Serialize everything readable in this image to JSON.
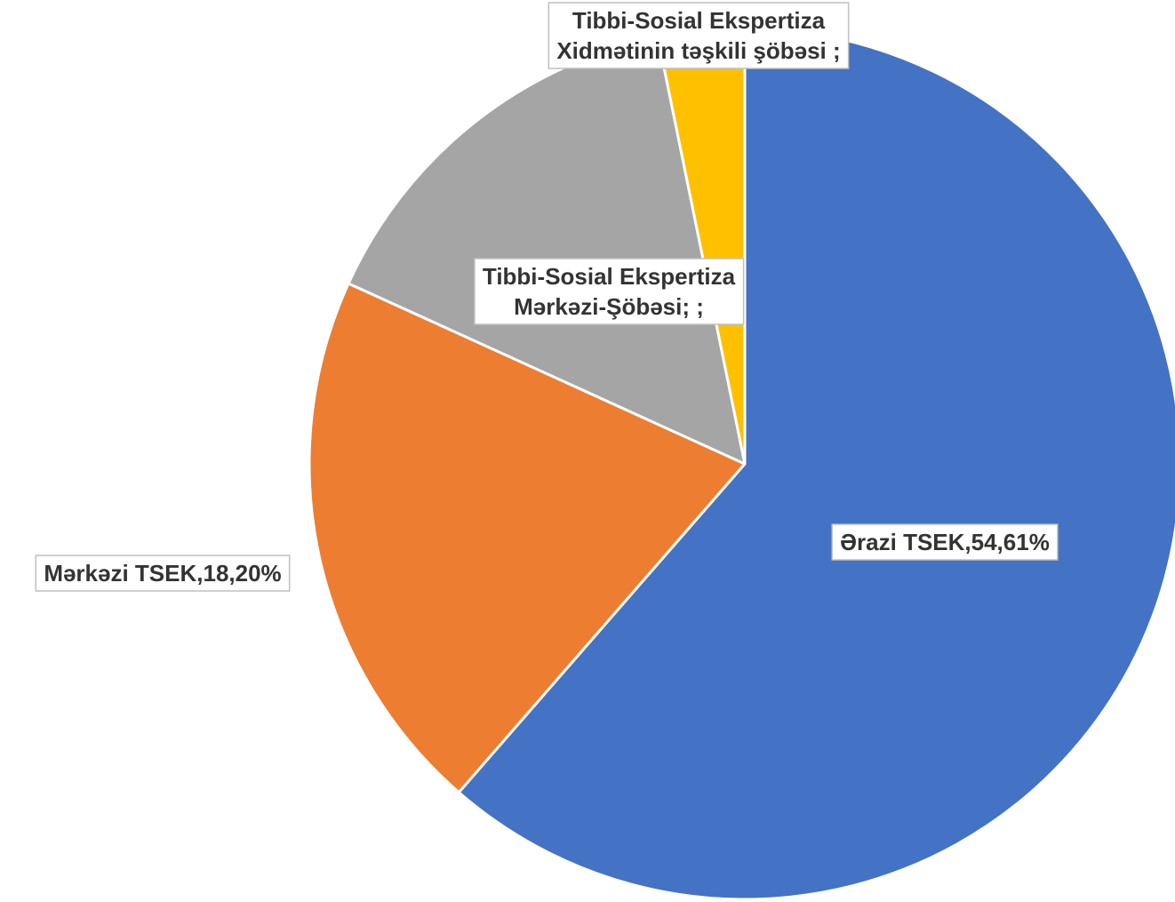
{
  "chart_data": {
    "type": "pie",
    "title": "",
    "start_angle_deg": 0,
    "direction": "clockwise",
    "slices": [
      {
        "value": 61.4,
        "color": "#4472C4",
        "label_lines": [
          "Ərazi TSEK,54,61%"
        ]
      },
      {
        "value": 20.4,
        "color": "#ED7D31",
        "label_lines": [
          "Mərkəzi TSEK,18,20%"
        ]
      },
      {
        "value": 15.0,
        "color": "#A5A5A5",
        "label_lines": [
          "Tibbi-Sosial Ekspertiza",
          "Mərkəzi-Şöbəsi; ;"
        ]
      },
      {
        "value": 3.2,
        "color": "#FFC000",
        "label_lines": [
          "Tibbi-Sosial Ekspertiza",
          "Xidmətinin təşkili şöbəsi ;"
        ]
      }
    ],
    "legend": "none",
    "data_labels": "boxed"
  }
}
